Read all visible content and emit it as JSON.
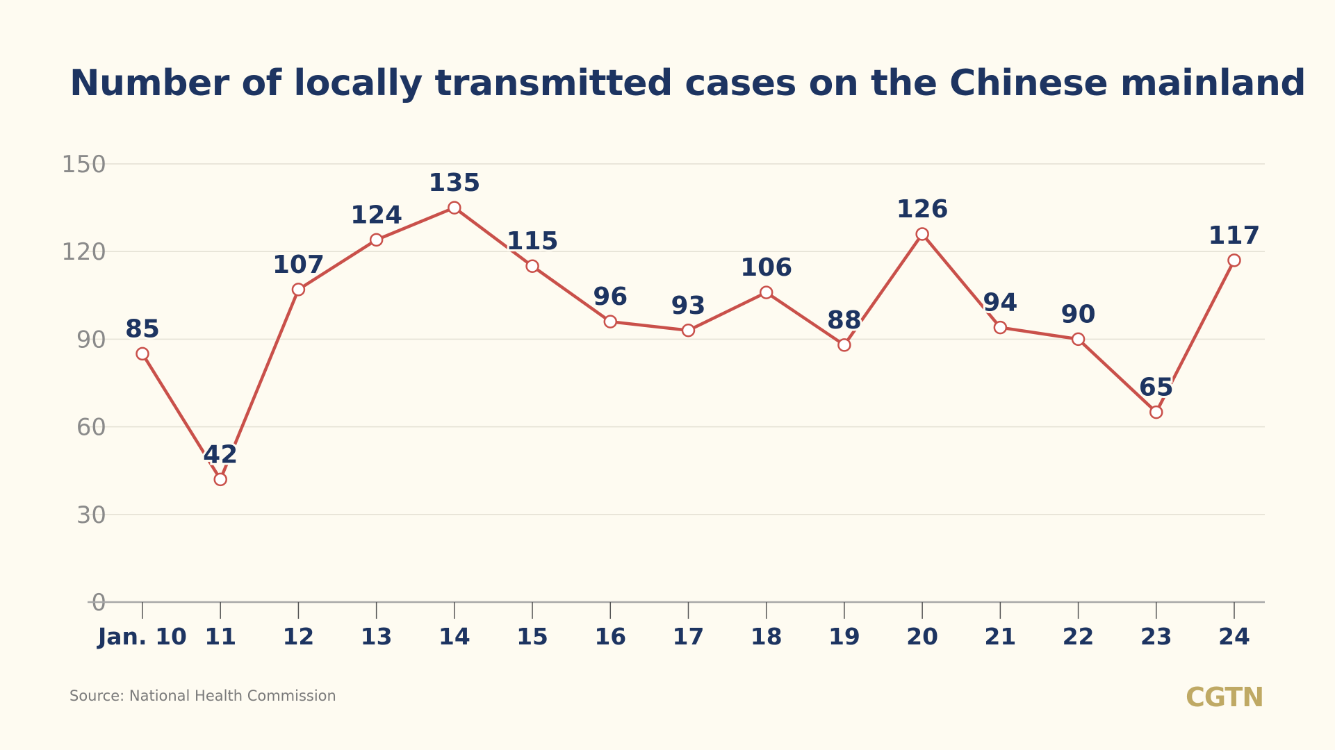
{
  "chart_data": {
    "type": "line",
    "title": "Number of locally transmitted cases on the Chinese mainland",
    "categories": [
      "Jan. 10",
      "11",
      "12",
      "13",
      "14",
      "15",
      "16",
      "17",
      "18",
      "19",
      "20",
      "21",
      "22",
      "23",
      "24"
    ],
    "values": [
      85,
      42,
      107,
      124,
      135,
      115,
      96,
      93,
      106,
      88,
      126,
      94,
      90,
      65,
      117
    ],
    "xlabel": "",
    "ylabel": "",
    "ylim": [
      0,
      150
    ],
    "yticks": [
      0,
      30,
      60,
      90,
      120,
      150
    ],
    "grid": true,
    "colors": {
      "line": "#c9504a",
      "labels": "#1d3461",
      "ticks": "#8a8a8a",
      "grid": "#e4e0d4",
      "background": "#fefbf1"
    }
  },
  "footer": {
    "source": "Source: National Health Commission",
    "logo": "CGTN"
  }
}
